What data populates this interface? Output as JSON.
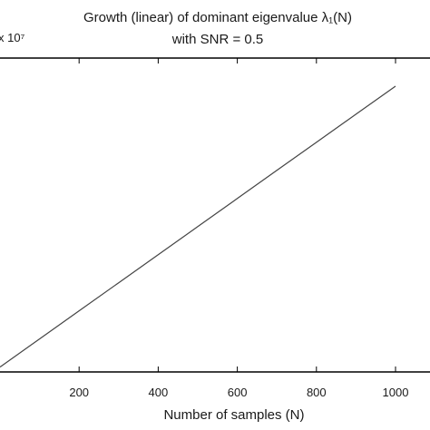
{
  "chart_data": {
    "type": "line",
    "title_line1": "Growth (linear) of dominant eigenvalue λ₁(N)",
    "title_line2": "with SNR = 0.5",
    "xlabel": "Number of samples (N)",
    "ylabel": "",
    "y_scale_label": "x 10⁷",
    "xlim": [
      0,
      1050
    ],
    "ylim": [
      0,
      1
    ],
    "xticks": [
      200,
      400,
      600,
      800,
      1000
    ],
    "grid": false,
    "series": [
      {
        "x": [
          0,
          100,
          200,
          300,
          400,
          500,
          600,
          700,
          800,
          900,
          1000
        ],
        "y": [
          0.01,
          0.1,
          0.19,
          0.28,
          0.37,
          0.46,
          0.55,
          0.64,
          0.73,
          0.82,
          0.91
        ]
      }
    ],
    "colors": {
      "line": "#444444",
      "axes": "#000000",
      "text": "#1a1a1a"
    }
  }
}
